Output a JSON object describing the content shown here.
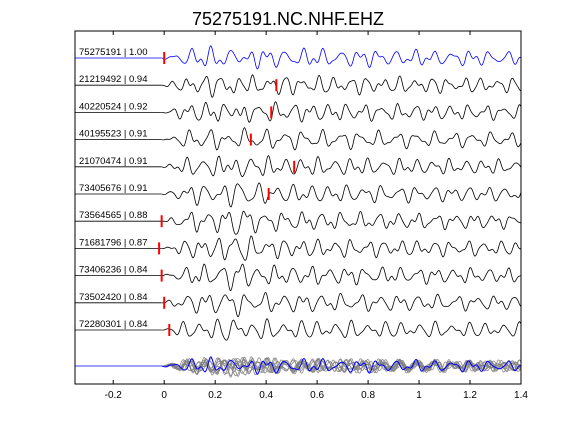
{
  "chart_data": {
    "type": "line",
    "title": "75275191.NC.NHF.EHZ",
    "xlabel": "",
    "ylabel": "",
    "xlim": [
      -0.35,
      1.4
    ],
    "x_ticks": [
      -0.2,
      0,
      0.2,
      0.4,
      0.6,
      0.8,
      1,
      1.2,
      1.4
    ],
    "x_tick_labels": [
      "-0.2",
      "0",
      "0.2",
      "0.4",
      "0.6",
      "0.8",
      "1",
      "1.2",
      "1.4"
    ],
    "grid": false,
    "colors": {
      "reference_trace": "#0000ff",
      "trace": "#000000",
      "pick_marker": "#ff0000",
      "stack_trace": "#808080",
      "frame": "#000000"
    },
    "traces": [
      {
        "label": "75275191 | 1.00",
        "pick_time": 0.0,
        "reference": true
      },
      {
        "label": "21219492 | 0.94",
        "pick_time": 0.44
      },
      {
        "label": "40220524 | 0.92",
        "pick_time": 0.42
      },
      {
        "label": "40195523 | 0.91",
        "pick_time": 0.34
      },
      {
        "label": "21070474 | 0.91",
        "pick_time": 0.51
      },
      {
        "label": "73405676 | 0.91",
        "pick_time": 0.41
      },
      {
        "label": "73564565 | 0.88",
        "pick_time": -0.01
      },
      {
        "label": "71681796 | 0.87",
        "pick_time": -0.02
      },
      {
        "label": "73406236 | 0.84",
        "pick_time": -0.01
      },
      {
        "label": "73502420 | 0.84",
        "pick_time": 0.0
      },
      {
        "label": "72280301 | 0.84",
        "pick_time": 0.02
      }
    ],
    "stack": {
      "label": ""
    }
  }
}
